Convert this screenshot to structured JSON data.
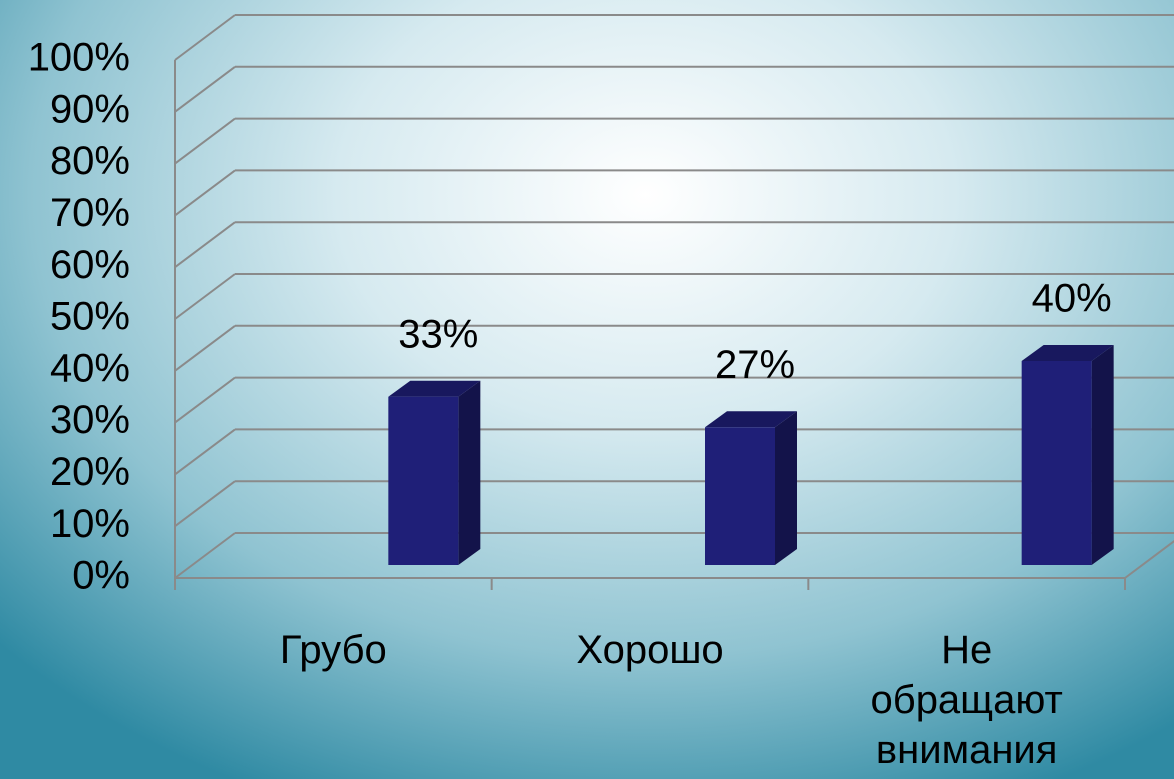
{
  "chart_data": {
    "type": "bar",
    "categories": [
      "Грубо",
      "Хорошо",
      "Не обращают внимания"
    ],
    "values": [
      33,
      27,
      40
    ],
    "value_labels": [
      "33%",
      "27%",
      "40%"
    ],
    "color": "#1f1f78",
    "ylim": [
      0,
      100
    ],
    "yticks": [
      {
        "value": 0,
        "label": "0%"
      },
      {
        "value": 10,
        "label": "10%"
      },
      {
        "value": 20,
        "label": "20%"
      },
      {
        "value": 30,
        "label": "30%"
      },
      {
        "value": 40,
        "label": "40%"
      },
      {
        "value": 50,
        "label": "50%"
      },
      {
        "value": 60,
        "label": "60%"
      },
      {
        "value": 70,
        "label": "70%"
      },
      {
        "value": 80,
        "label": "80%"
      },
      {
        "value": 90,
        "label": "90%"
      },
      {
        "value": 100,
        "label": "100%"
      }
    ],
    "grid": true
  }
}
